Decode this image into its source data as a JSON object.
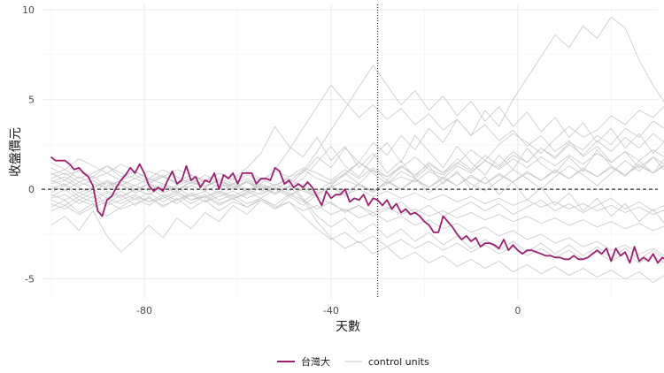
{
  "chart_data": {
    "type": "line",
    "xlabel": "天數",
    "ylabel": "收盤價元",
    "xlim": [
      -102,
      30
    ],
    "ylim": [
      -6.1,
      10.3
    ],
    "x_ticks": [
      -80,
      -40,
      0
    ],
    "y_ticks": [
      -5,
      0,
      5,
      10
    ],
    "x_tick_labels": [
      "-80",
      "-40",
      "0"
    ],
    "y_tick_labels": [
      "-5",
      "0",
      "5",
      "10"
    ],
    "grid": true,
    "hline": {
      "y": 0,
      "style": "dashed"
    },
    "vline": {
      "x": -30,
      "style": "dotted"
    },
    "legend": {
      "position": "bottom",
      "entries": [
        {
          "label": "台灣大",
          "color": "#9E1F6F"
        },
        {
          "label": "control units",
          "color": "#c8c8c8"
        }
      ]
    },
    "treated_series": {
      "name": "台灣大",
      "color": "#9E1F6F",
      "x_start": -100,
      "x_step": 1,
      "values": [
        1.8,
        1.6,
        1.6,
        1.6,
        1.4,
        1.1,
        1.2,
        0.9,
        0.7,
        0.2,
        -1.2,
        -1.5,
        -0.6,
        -0.4,
        0.1,
        0.5,
        0.8,
        1.2,
        0.9,
        1.4,
        0.9,
        0.2,
        -0.1,
        0.1,
        -0.1,
        0.5,
        1.0,
        0.3,
        0.5,
        1.3,
        0.5,
        0.7,
        0.1,
        0.5,
        0.4,
        0.9,
        0.0,
        0.8,
        0.6,
        0.9,
        0.3,
        0.9,
        0.9,
        0.9,
        0.3,
        0.6,
        0.6,
        0.5,
        1.2,
        1.0,
        0.3,
        0.5,
        0.1,
        0.3,
        0.1,
        0.4,
        0.1,
        -0.4,
        -0.9,
        -0.1,
        -0.5,
        -0.3,
        -0.3,
        0.0,
        -0.7,
        -0.5,
        -0.6,
        -0.3,
        -0.9,
        -0.5,
        -0.6,
        -0.9,
        -0.6,
        -1.1,
        -0.8,
        -1.3,
        -1.1,
        -1.4,
        -1.3,
        -1.5,
        -1.8,
        -2.0,
        -2.4,
        -2.4,
        -1.5,
        -1.8,
        -2.1,
        -2.5,
        -2.8,
        -2.6,
        -2.9,
        -2.7,
        -3.2,
        -3.0,
        -3.0,
        -3.1,
        -3.3,
        -2.8,
        -3.4,
        -3.1,
        -3.4,
        -3.6,
        -3.4,
        -3.4,
        -3.5,
        -3.6,
        -3.7,
        -3.7,
        -3.8,
        -3.8,
        -3.9,
        -3.9,
        -3.7,
        -3.9,
        -3.9,
        -3.8,
        -3.6,
        -3.4,
        -3.6,
        -3.3,
        -4.0,
        -3.3,
        -3.7,
        -3.5,
        -4.1,
        -3.2,
        -4.0,
        -3.8,
        -4.0,
        -3.6,
        -4.1,
        -3.8,
        -4.0,
        -3.5,
        -4.2,
        -3.9,
        -3.4,
        -3.9,
        -3.7,
        -3.6,
        -3.3,
        -4.0,
        -3.1,
        -3.7,
        -4.3,
        -4.2,
        -4.0,
        -3.6,
        -4.3,
        -3.2,
        -2.8,
        -2.6,
        -2.6,
        -2.8,
        -2.6,
        -2.1,
        -2.4,
        -2.8,
        -3.1,
        -3.2,
        -3.1,
        -3.3,
        -3.1,
        -3.3,
        -3.1,
        -3.1
      ]
    },
    "control_units": [
      {
        "x_start": -100,
        "x_step": 3,
        "values": [
          0.3,
          0.5,
          0.1,
          -0.2,
          0.4,
          0.2,
          -0.1,
          0.3,
          0.0,
          0.2,
          0.5,
          0.1,
          -0.2,
          0.3,
          0.6,
          0.2,
          0.0,
          0.4,
          1.1,
          0.6,
          0.3,
          0.8,
          1.5,
          1.0,
          0.7,
          1.2,
          1.8,
          1.1,
          0.8,
          1.4,
          2.2,
          1.6,
          2.5,
          3.1,
          2.6,
          2.0,
          2.8,
          3.5,
          2.9,
          3.3,
          4.1,
          3.6,
          4.4,
          4.0,
          4.8,
          5.5
        ]
      },
      {
        "x_start": -100,
        "x_step": 3,
        "values": [
          -0.5,
          -0.3,
          -0.8,
          -0.4,
          -0.9,
          -0.6,
          -0.3,
          -0.7,
          -0.5,
          -0.2,
          -0.6,
          -0.4,
          -0.1,
          -0.5,
          -0.3,
          0.1,
          -0.2,
          0.2,
          -0.1,
          -0.4,
          0.1,
          0.5,
          0.2,
          -0.1,
          0.3,
          0.7,
          0.4,
          1.0,
          0.6,
          1.3,
          0.9,
          1.6,
          1.2,
          1.9,
          1.5,
          2.3,
          1.8,
          2.6,
          2.2,
          3.0,
          2.5,
          3.4,
          2.9,
          3.8,
          3.3,
          4.3
        ]
      },
      {
        "x_start": -100,
        "x_step": 3,
        "values": [
          0.8,
          1.1,
          0.6,
          0.9,
          1.3,
          0.7,
          1.0,
          0.5,
          0.8,
          0.3,
          0.6,
          0.2,
          0.5,
          0.1,
          0.4,
          -0.1,
          0.2,
          0.6,
          0.1,
          -0.3,
          0.2,
          0.9,
          1.5,
          0.9,
          0.3,
          1.0,
          0.6,
          -0.2,
          0.4,
          0.9,
          0.3,
          -0.1,
          0.5,
          1.1,
          0.6,
          0.0,
          0.7,
          1.3,
          0.8,
          0.2,
          0.9,
          1.6,
          1.0,
          1.8,
          1.3,
          2.0
        ]
      },
      {
        "x_start": -100,
        "x_step": 3,
        "values": [
          -1.2,
          -0.9,
          -1.4,
          -1.0,
          -0.7,
          -1.1,
          -0.8,
          -0.5,
          -0.9,
          -0.6,
          -0.3,
          -0.7,
          -0.4,
          -0.1,
          -0.5,
          -0.2,
          0.1,
          -0.3,
          0.0,
          -0.4,
          -0.8,
          -1.2,
          -0.9,
          -1.3,
          -1.0,
          -1.4,
          -1.1,
          -1.5,
          -1.2,
          -1.6,
          -1.3,
          -1.7,
          -1.4,
          -1.8,
          -1.5,
          -1.9,
          -1.6,
          -2.0,
          -1.7,
          -2.1,
          -1.8,
          -2.2,
          -1.9,
          -2.3,
          -2.0,
          -2.4
        ]
      },
      {
        "x_start": -100,
        "x_step": 3,
        "values": [
          0.0,
          0.3,
          -0.2,
          0.1,
          0.4,
          0.0,
          0.2,
          -0.1,
          0.3,
          0.0,
          0.2,
          0.5,
          0.1,
          0.3,
          0.0,
          0.2,
          -0.2,
          0.1,
          0.6,
          1.5,
          2.4,
          1.3,
          0.7,
          1.8,
          2.6,
          1.5,
          3.0,
          2.1,
          1.2,
          2.4,
          1.5,
          0.8,
          1.9,
          1.1,
          2.3,
          1.4,
          0.9,
          1.8,
          1.0,
          2.2,
          1.3,
          0.7,
          1.6,
          0.9,
          1.9,
          1.2
        ]
      },
      {
        "x_start": -100,
        "x_step": 3,
        "values": [
          -0.3,
          -0.6,
          -0.2,
          -0.5,
          -0.1,
          -0.4,
          0.0,
          -0.3,
          0.1,
          -0.2,
          0.2,
          -0.1,
          0.3,
          0.0,
          0.4,
          0.1,
          -0.2,
          0.2,
          -0.6,
          -1.8,
          -2.7,
          -3.3,
          -2.9,
          -3.6,
          -3.2,
          -3.9,
          -3.5,
          -4.1,
          -3.7,
          -4.3,
          -3.9,
          -4.4,
          -4.0,
          -4.6,
          -4.2,
          -4.7,
          -4.3,
          -4.8,
          -4.4,
          -4.9,
          -4.5,
          -5.0,
          -4.6,
          -5.2,
          -4.7,
          -3.8
        ]
      },
      {
        "x_start": -100,
        "x_step": 3,
        "values": [
          0.5,
          0.2,
          0.7,
          0.3,
          0.1,
          0.5,
          0.2,
          0.6,
          0.3,
          0.0,
          0.4,
          0.1,
          0.5,
          0.2,
          -0.1,
          0.3,
          0.0,
          0.4,
          -0.5,
          -1.5,
          -2.1,
          -1.6,
          -2.4,
          -1.9,
          -2.7,
          -2.2,
          -2.9,
          -2.4,
          -3.1,
          -2.6,
          -3.3,
          -2.8,
          -3.4,
          -2.9,
          -3.5,
          -3.0,
          -3.6,
          -3.1,
          -3.7,
          -3.2,
          -3.8,
          -3.3,
          -3.9,
          -3.4,
          -4.0,
          -3.5
        ]
      },
      {
        "x_start": -100,
        "x_step": 3,
        "values": [
          -0.8,
          -1.1,
          -0.6,
          -0.9,
          -0.5,
          -0.8,
          -0.4,
          -0.7,
          -0.3,
          -0.6,
          -0.2,
          -0.5,
          -0.1,
          -0.4,
          0.0,
          -0.3,
          0.1,
          -0.2,
          -0.6,
          -1.1,
          -0.7,
          -1.3,
          -0.9,
          -1.5,
          -1.1,
          -0.7,
          -1.3,
          -0.9,
          -1.5,
          -1.1,
          -0.7,
          -1.2,
          -0.8,
          -1.4,
          -1.0,
          -0.6,
          -1.2,
          -0.8,
          -1.3,
          -0.9,
          -0.5,
          -1.1,
          -0.7,
          -1.2,
          -0.8,
          -1.4
        ]
      },
      {
        "x_start": -100,
        "x_step": 3,
        "values": [
          1.2,
          0.8,
          1.0,
          0.6,
          0.9,
          0.5,
          0.8,
          0.4,
          0.7,
          0.3,
          0.6,
          0.2,
          0.5,
          0.1,
          0.4,
          0.0,
          0.3,
          -0.1,
          0.2,
          -0.2,
          0.1,
          -0.3,
          0.0,
          -0.4,
          -0.1,
          -0.5,
          -0.2,
          -0.6,
          -0.3,
          -0.7,
          -0.4,
          -0.8,
          -0.5,
          -0.9,
          -0.6,
          -1.0,
          -0.7,
          -1.1,
          -0.8,
          -1.2,
          -0.9,
          -1.3,
          -1.0,
          -1.4,
          -1.1,
          -1.5
        ]
      },
      {
        "x_start": -100,
        "x_step": 3,
        "values": [
          -2.0,
          -1.5,
          -2.3,
          -1.2,
          -2.6,
          -3.5,
          -2.8,
          -2.0,
          -2.7,
          -1.6,
          -2.2,
          -1.3,
          -1.8,
          -0.9,
          -1.4,
          -0.6,
          -1.1,
          -0.4,
          -0.9,
          -0.3,
          0.2,
          -0.4,
          0.3,
          -0.2,
          0.5,
          0.0,
          0.6,
          0.1,
          0.7,
          0.2,
          0.8,
          0.3,
          0.9,
          0.4,
          1.0,
          0.5,
          1.1,
          0.6,
          1.2,
          0.7,
          1.3,
          0.8,
          1.4,
          0.9,
          1.5,
          1.0
        ]
      },
      {
        "x_start": -100,
        "x_step": 3,
        "values": [
          0.2,
          -0.1,
          0.4,
          0.1,
          0.5,
          0.2,
          0.6,
          0.3,
          0.7,
          0.4,
          0.8,
          0.5,
          0.9,
          0.6,
          1.2,
          2.0,
          3.5,
          2.4,
          1.8,
          2.9,
          1.6,
          2.4,
          1.2,
          2.0,
          0.9,
          1.6,
          0.6,
          1.3,
          0.3,
          1.0,
          0.0,
          0.7,
          -0.3,
          0.4,
          -0.6,
          0.1,
          -0.9,
          -0.2,
          -1.2,
          -0.5,
          -1.5,
          -0.8,
          -1.8,
          -1.1,
          -2.1,
          -1.4
        ]
      },
      {
        "x_start": -100,
        "x_step": 3,
        "values": [
          -0.4,
          0.0,
          -0.6,
          -0.2,
          -0.8,
          -0.3,
          -0.9,
          -0.4,
          -1.0,
          -0.5,
          -1.1,
          -0.6,
          -1.2,
          -0.7,
          -1.0,
          -0.5,
          -0.9,
          -0.3,
          -0.7,
          -0.1,
          0.4,
          0.9,
          0.3,
          1.1,
          0.5,
          1.3,
          0.7,
          1.5,
          0.9,
          1.7,
          1.1,
          1.9,
          1.3,
          2.1,
          1.5,
          2.3,
          1.7,
          2.5,
          1.9,
          2.7,
          2.1,
          2.9,
          2.3,
          3.1,
          2.5,
          2.9
        ]
      },
      {
        "x_start": -100,
        "x_step": 3,
        "values": [
          0.6,
          0.9,
          0.4,
          0.7,
          0.2,
          0.5,
          0.0,
          0.3,
          -0.2,
          0.1,
          -0.4,
          -0.1,
          -0.6,
          -0.3,
          -0.8,
          -0.5,
          -1.0,
          -0.7,
          -1.2,
          -0.9,
          -1.4,
          -1.1,
          -1.6,
          -1.3,
          -1.8,
          -1.5,
          -2.0,
          -1.7,
          -2.2,
          -1.9,
          -2.4,
          -2.1,
          -2.6,
          -2.3,
          -2.8,
          -2.5,
          -3.0,
          -2.7,
          -3.2,
          -2.9,
          -3.4,
          -3.1,
          -3.6,
          -3.3,
          -3.8,
          -3.5
        ]
      },
      {
        "x_start": -100,
        "x_step": 3,
        "values": [
          -1.0,
          -0.6,
          -1.3,
          -0.8,
          -1.5,
          -1.0,
          -0.5,
          -0.9,
          -0.4,
          -0.8,
          -0.3,
          -0.7,
          -0.2,
          -0.6,
          -0.1,
          -0.5,
          0.0,
          -0.4,
          0.1,
          -0.3,
          0.2,
          -0.2,
          0.3,
          -0.1,
          0.4,
          0.0,
          0.5,
          0.1,
          0.6,
          0.2,
          0.7,
          0.3,
          0.8,
          0.4,
          0.9,
          0.5,
          1.0,
          0.6,
          1.1,
          0.7,
          1.2,
          0.8,
          1.3,
          0.9,
          1.4,
          1.0
        ]
      },
      {
        "x_start": -100,
        "x_step": 3,
        "values": [
          0.9,
          0.5,
          1.1,
          0.7,
          1.3,
          0.9,
          0.6,
          1.0,
          0.7,
          1.1,
          0.8,
          0.4,
          0.9,
          0.5,
          1.0,
          0.6,
          0.2,
          0.7,
          0.9,
          1.8,
          1.2,
          2.3,
          1.5,
          2.6,
          1.9,
          3.0,
          2.2,
          3.4,
          2.6,
          3.9,
          3.0,
          4.4,
          3.5,
          5.0,
          6.2,
          7.4,
          8.6,
          7.9,
          9.1,
          8.4,
          9.6,
          9.0,
          7.2,
          5.8,
          4.6,
          3.8
        ]
      },
      {
        "x_start": -100,
        "x_step": 3,
        "values": [
          -0.2,
          0.2,
          -0.4,
          0.0,
          -0.5,
          -0.1,
          -0.6,
          -0.2,
          -0.7,
          -0.3,
          -0.8,
          -0.4,
          -0.9,
          -0.5,
          -1.0,
          -0.6,
          -1.1,
          -0.7,
          -1.5,
          -2.2,
          -2.8,
          -2.4,
          -3.0,
          -2.6,
          -3.2,
          -2.8,
          -3.3,
          -2.9,
          -3.4,
          -3.0,
          -3.5,
          -3.1,
          -3.6,
          -3.2,
          -3.7,
          -3.3,
          -3.8,
          -3.4,
          -3.9,
          -3.5,
          -4.0,
          -3.6,
          -4.1,
          -3.7,
          -4.2,
          -3.8
        ]
      },
      {
        "x_start": -100,
        "x_step": 3,
        "values": [
          0.4,
          0.7,
          0.2,
          0.5,
          0.0,
          0.3,
          -0.2,
          0.1,
          -0.4,
          -0.1,
          -0.6,
          -0.3,
          -0.8,
          -0.5,
          -0.2,
          0.3,
          1.1,
          2.2,
          3.4,
          4.6,
          5.8,
          4.9,
          4.0,
          4.7,
          3.9,
          4.5,
          3.6,
          4.2,
          3.3,
          3.9,
          3.0,
          3.6,
          2.7,
          3.3,
          2.4,
          3.0,
          2.1,
          2.7,
          1.8,
          2.4,
          1.5,
          2.1,
          1.2,
          1.8,
          0.9,
          1.5
        ]
      },
      {
        "x_start": -100,
        "x_step": 3,
        "values": [
          -0.6,
          -0.9,
          -0.4,
          -0.7,
          -0.2,
          -0.5,
          0.0,
          -0.3,
          0.2,
          -0.1,
          0.4,
          0.1,
          0.6,
          0.3,
          0.8,
          0.5,
          1.0,
          0.7,
          1.2,
          0.9,
          0.5,
          1.1,
          0.6,
          1.2,
          0.7,
          1.3,
          0.8,
          1.4,
          0.9,
          1.5,
          1.0,
          1.6,
          1.1,
          1.7,
          1.2,
          1.8,
          1.3,
          1.9,
          1.4,
          2.0,
          1.5,
          2.1,
          1.6,
          2.2,
          1.7,
          2.3
        ]
      },
      {
        "x_start": -100,
        "x_step": 3,
        "values": [
          1.5,
          1.1,
          1.7,
          1.3,
          0.9,
          1.4,
          1.0,
          0.6,
          1.1,
          0.7,
          0.3,
          0.8,
          0.4,
          0.0,
          0.5,
          0.1,
          -0.3,
          0.2,
          1.0,
          2.1,
          3.3,
          4.5,
          5.7,
          6.9,
          5.8,
          4.7,
          5.5,
          4.4,
          5.2,
          4.1,
          4.9,
          3.8,
          4.6,
          3.5,
          4.3,
          3.2,
          4.0,
          2.9,
          3.7,
          2.6,
          3.4,
          2.3,
          3.1,
          2.0,
          2.8,
          2.2
        ]
      }
    ]
  }
}
